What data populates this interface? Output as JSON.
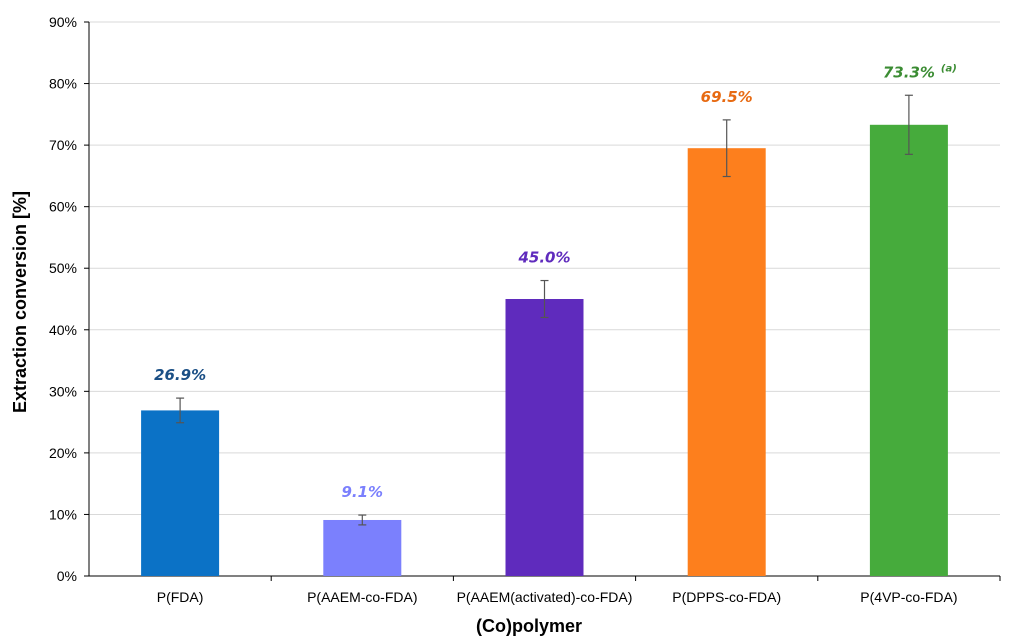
{
  "chart_data": {
    "type": "bar",
    "title": "",
    "xlabel": "(Co)polymer",
    "ylabel": "Extraction conversion [%]",
    "ylim": [
      0,
      90
    ],
    "y_tick_step": 10,
    "y_tick_labels": [
      "0%",
      "10%",
      "20%",
      "30%",
      "40%",
      "50%",
      "60%",
      "70%",
      "80%",
      "90%"
    ],
    "grid": "horizontal",
    "legend": "none",
    "categories": [
      "P(FDA)",
      "P(AAEM-co-FDA)",
      "P(AAEM(activated)-co-FDA)",
      "P(DPPS-co-FDA)",
      "P(4VP-co-FDA)"
    ],
    "values": [
      26.9,
      9.1,
      45.0,
      69.5,
      73.3
    ],
    "error": [
      2.0,
      0.8,
      3.0,
      4.6,
      4.8
    ],
    "data_labels": [
      "26.9%",
      "9.1%",
      "45.0%",
      "69.5%",
      "73.3%"
    ],
    "data_label_notes": [
      "",
      "",
      "",
      "",
      "(a)"
    ],
    "bar_colors": [
      "#0b72c6",
      "#7b80fd",
      "#5f2bbd",
      "#fd7f1d",
      "#46ab3c"
    ],
    "label_colors": [
      "#1b4f85",
      "#7b80fd",
      "#5f2bbd",
      "#e76a12",
      "#3b8c33"
    ]
  }
}
